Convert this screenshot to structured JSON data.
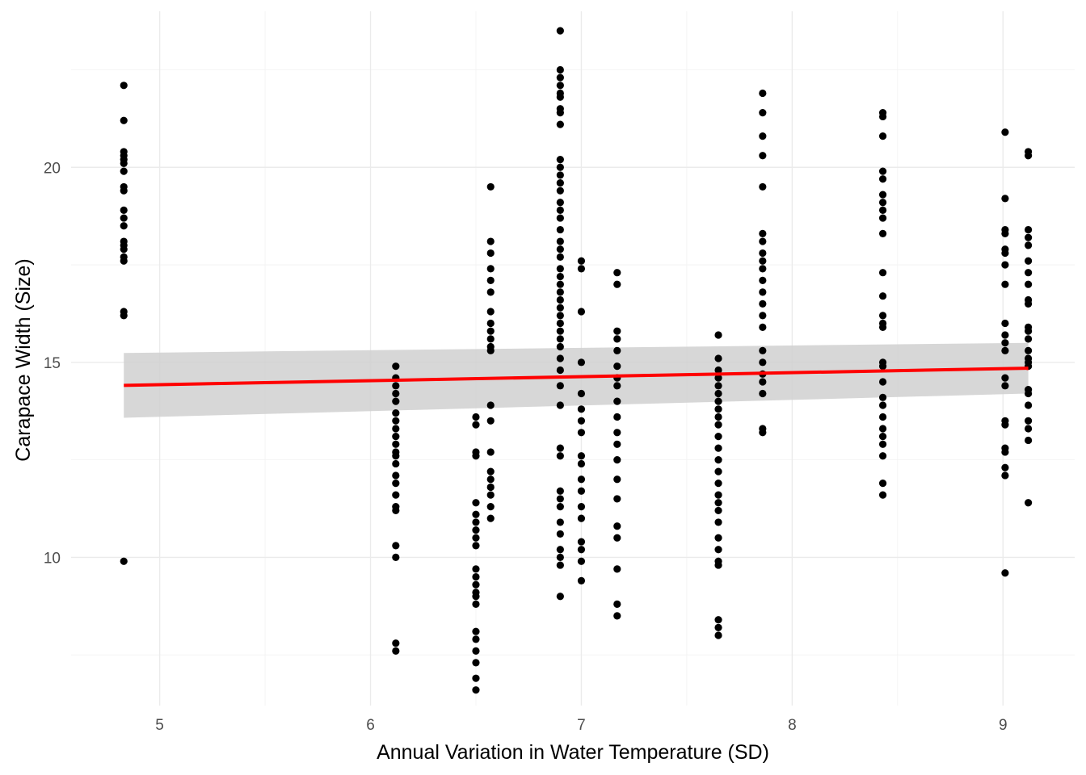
{
  "chart_data": {
    "type": "scatter",
    "title": "",
    "xlabel": "Annual Variation in Water Temperature (SD)",
    "ylabel": "Carapace Width (Size)",
    "xlim": [
      4.58,
      9.34
    ],
    "ylim": [
      6.2,
      24.0
    ],
    "x_ticks": [
      5,
      6,
      7,
      8,
      9
    ],
    "x_tick_labels": [
      "5",
      "6",
      "7",
      "8",
      "9"
    ],
    "y_ticks": [
      10,
      15,
      20
    ],
    "y_tick_labels": [
      "10",
      "15",
      "20"
    ],
    "grid": true,
    "legend": "none",
    "colors": {
      "points": "#000000",
      "fit_line": "#ff0000",
      "ribbon": "#d0d0d0"
    },
    "points": [
      {
        "x": 4.83,
        "y": [
          22.1,
          21.2,
          20.4,
          20.3,
          20.2,
          20.1,
          19.9,
          19.5,
          19.4,
          18.9,
          18.7,
          18.5,
          18.1,
          18.0,
          17.9,
          17.7,
          17.6,
          16.3,
          16.2,
          9.9
        ]
      },
      {
        "x": 6.12,
        "y": [
          14.9,
          14.6,
          14.4,
          14.2,
          14.0,
          13.7,
          13.5,
          13.3,
          13.1,
          12.9,
          12.7,
          12.6,
          12.4,
          12.1,
          11.9,
          11.6,
          11.3,
          11.2,
          10.3,
          10.0,
          7.8,
          7.6
        ]
      },
      {
        "x": 6.5,
        "y": [
          13.6,
          13.4,
          12.7,
          12.6,
          11.4,
          11.1,
          10.9,
          10.7,
          10.5,
          10.3,
          9.7,
          9.5,
          9.3,
          9.1,
          9.0,
          8.8,
          8.1,
          7.9,
          7.6,
          7.3,
          6.9,
          6.6
        ]
      },
      {
        "x": 6.57,
        "y": [
          19.5,
          18.1,
          17.8,
          17.4,
          17.1,
          16.8,
          16.3,
          16.0,
          15.8,
          15.6,
          15.4,
          15.3,
          13.9,
          13.5,
          12.7,
          12.2,
          12.0,
          11.8,
          11.6,
          11.3,
          11.0
        ]
      },
      {
        "x": 6.9,
        "y": [
          23.5,
          22.5,
          22.3,
          22.1,
          21.9,
          21.8,
          21.5,
          21.4,
          21.1,
          20.2,
          20.0,
          19.8,
          19.6,
          19.4,
          19.1,
          18.9,
          18.7,
          18.4,
          18.1,
          17.9,
          17.7,
          17.4,
          17.2,
          17.0,
          16.8,
          16.6,
          16.4,
          16.2,
          16.0,
          15.8,
          15.6,
          15.4,
          15.1,
          14.8,
          14.4,
          13.9,
          12.8,
          12.6,
          11.7,
          11.5,
          11.3,
          10.9,
          10.6,
          10.2,
          10.0,
          9.8,
          9.0
        ]
      },
      {
        "x": 7.0,
        "y": [
          17.6,
          17.4,
          16.3,
          15.0,
          14.2,
          13.8,
          13.5,
          13.2,
          12.6,
          12.4,
          12.0,
          11.7,
          11.3,
          11.0,
          10.4,
          10.2,
          9.9,
          9.4
        ]
      },
      {
        "x": 7.17,
        "y": [
          17.3,
          17.0,
          15.8,
          15.6,
          15.3,
          14.9,
          14.6,
          14.4,
          14.0,
          13.6,
          13.2,
          12.9,
          12.5,
          12.0,
          11.5,
          10.8,
          10.5,
          9.7,
          8.8,
          8.5
        ]
      },
      {
        "x": 7.65,
        "y": [
          15.7,
          15.1,
          14.8,
          14.6,
          14.4,
          14.2,
          14.0,
          13.8,
          13.6,
          13.4,
          13.1,
          12.8,
          12.5,
          12.2,
          11.9,
          11.6,
          11.4,
          11.2,
          10.9,
          10.5,
          10.2,
          9.9,
          9.8,
          8.4,
          8.2,
          8.0
        ]
      },
      {
        "x": 7.86,
        "y": [
          21.9,
          21.4,
          20.8,
          20.3,
          19.5,
          18.3,
          18.1,
          17.8,
          17.6,
          17.4,
          17.1,
          16.8,
          16.5,
          16.2,
          15.9,
          15.3,
          15.0,
          14.7,
          14.5,
          14.2,
          13.3,
          13.2
        ]
      },
      {
        "x": 8.43,
        "y": [
          21.4,
          21.3,
          20.8,
          19.9,
          19.7,
          19.3,
          19.1,
          18.9,
          18.7,
          18.3,
          17.3,
          16.7,
          16.2,
          16.0,
          15.9,
          15.0,
          14.9,
          14.5,
          14.1,
          13.9,
          13.6,
          13.3,
          13.1,
          12.9,
          12.6,
          11.9,
          11.6
        ]
      },
      {
        "x": 9.01,
        "y": [
          20.9,
          19.2,
          18.4,
          18.3,
          17.9,
          17.8,
          17.5,
          17.0,
          16.0,
          15.7,
          15.5,
          15.3,
          14.6,
          14.4,
          13.5,
          13.4,
          12.8,
          12.7,
          12.3,
          12.1,
          9.6
        ]
      },
      {
        "x": 9.12,
        "y": [
          20.4,
          20.3,
          18.4,
          18.2,
          18.0,
          17.6,
          17.3,
          17.0,
          16.6,
          16.5,
          15.9,
          15.8,
          15.6,
          15.3,
          15.1,
          15.0,
          14.9,
          14.3,
          14.2,
          13.9,
          13.5,
          13.3,
          13.0,
          11.4
        ]
      }
    ],
    "fit": {
      "method": "linear",
      "x": [
        4.83,
        9.12
      ],
      "y": [
        14.41,
        14.85
      ],
      "ci_lower": [
        13.58,
        14.2
      ],
      "ci_upper": [
        15.24,
        15.5
      ]
    }
  }
}
